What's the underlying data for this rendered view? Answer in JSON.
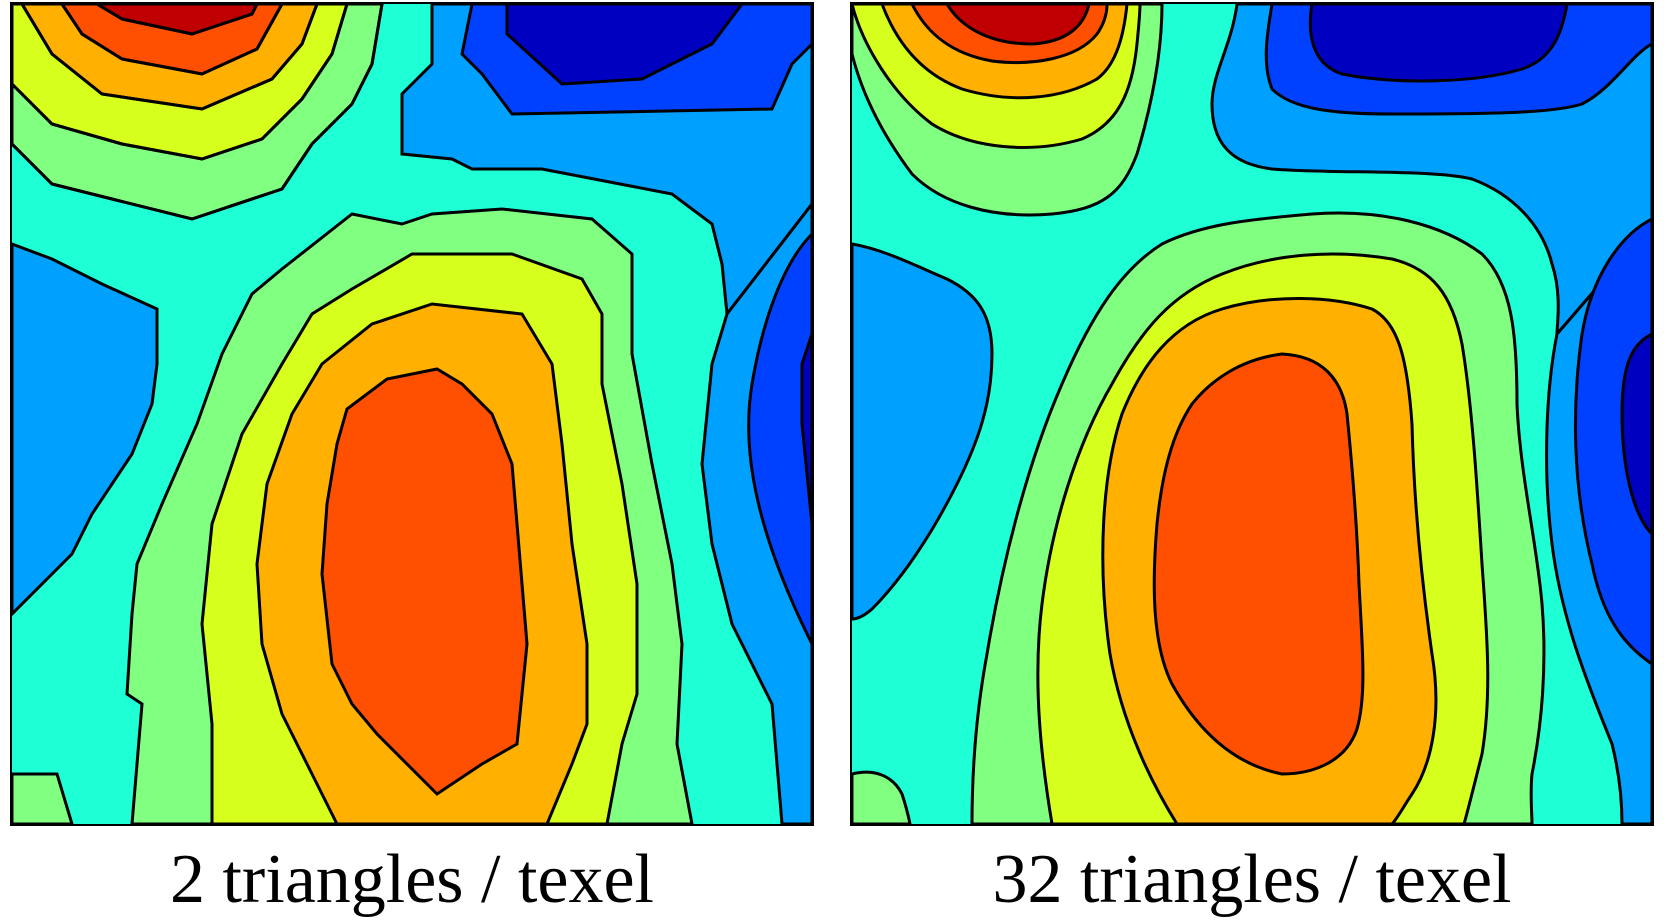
{
  "panels": [
    {
      "caption": "2 triangles / texel"
    },
    {
      "caption": "32 triangles / texel"
    }
  ],
  "colors": {
    "dark_red": "#c00000",
    "red_orange": "#ff4f00",
    "orange": "#ffb000",
    "yellow": "#d6ff1e",
    "light_green": "#80ff80",
    "cyan": "#1effd5",
    "light_blue": "#00a0ff",
    "blue": "#0040ff",
    "dark_blue": "#0000c0",
    "contour_line": "#000000"
  }
}
